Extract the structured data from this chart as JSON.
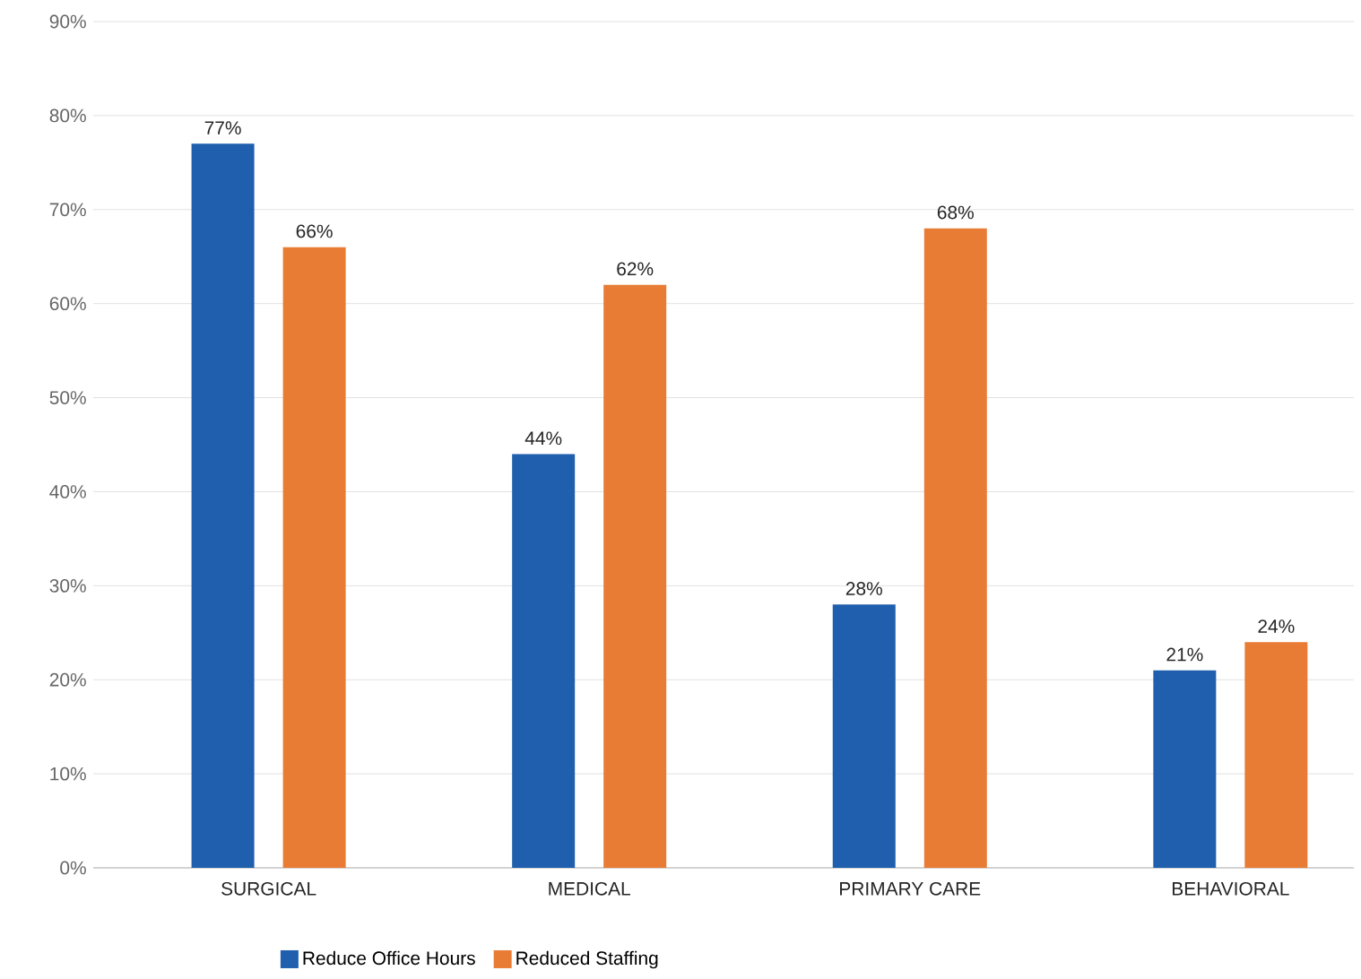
{
  "chart_data": {
    "type": "bar",
    "categories": [
      "SURGICAL",
      "MEDICAL",
      "PRIMARY CARE",
      "BEHAVIORAL"
    ],
    "series": [
      {
        "name": "Reduce Office Hours",
        "color": "#1f5fad",
        "values": [
          77,
          44,
          28,
          21
        ],
        "value_labels": [
          "77%",
          "44%",
          "28%",
          "21%"
        ]
      },
      {
        "name": "Reduced Staffing",
        "color": "#e87c35",
        "values": [
          66,
          62,
          68,
          24
        ],
        "value_labels": [
          "66%",
          "62%",
          "68%",
          "24%"
        ]
      }
    ],
    "ylim": [
      0,
      90
    ],
    "yticks": [
      {
        "value": 0,
        "label": "0%"
      },
      {
        "value": 10,
        "label": "10%"
      },
      {
        "value": 20,
        "label": "20%"
      },
      {
        "value": 30,
        "label": "30%"
      },
      {
        "value": 40,
        "label": "40%"
      },
      {
        "value": 50,
        "label": "50%"
      },
      {
        "value": 60,
        "label": "60%"
      },
      {
        "value": 70,
        "label": "70%"
      },
      {
        "value": 80,
        "label": "80%"
      },
      {
        "value": 90,
        "label": "90%"
      }
    ],
    "grid": "y",
    "legend": "bottom"
  }
}
